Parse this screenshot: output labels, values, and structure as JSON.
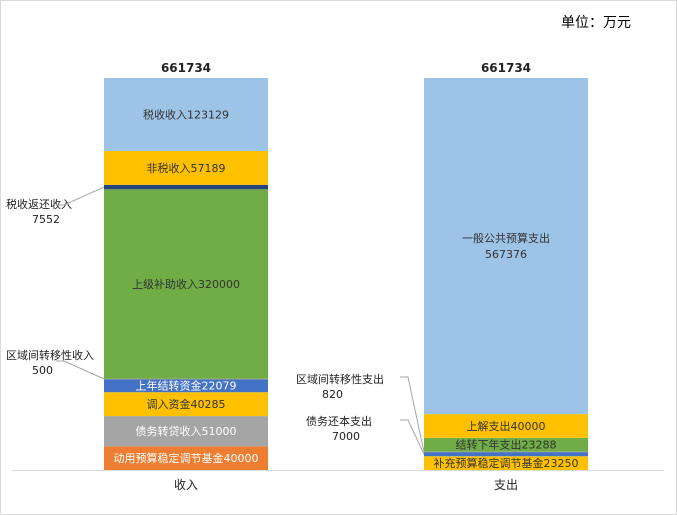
{
  "unit_label": "单位：万元",
  "chart_data": {
    "type": "bar",
    "stacked": true,
    "categories": [
      "收入",
      "支出"
    ],
    "totals": [
      661734,
      661734
    ],
    "bars": [
      {
        "category": "收入",
        "total_label": "661734",
        "segments": [
          {
            "name": "动用预算稳定调节基金",
            "value": 40000,
            "color": "#ED7D31",
            "text_color": "#ffffff"
          },
          {
            "name": "债务转贷收入",
            "value": 51000,
            "color": "#A5A5A5",
            "text_color": "#ffffff"
          },
          {
            "name": "调入资金",
            "value": 40285,
            "color": "#FFC000",
            "text_color": "#333333"
          },
          {
            "name": "上年结转资金",
            "value": 22079,
            "color": "#4472C4",
            "text_color": "#ffffff"
          },
          {
            "name": "区域间转移性收入",
            "value": 500,
            "color": "#A5A5A5",
            "text_color": "#ffffff",
            "callout": true
          },
          {
            "name": "上级补助收入",
            "value": 320000,
            "color": "#70AD47",
            "text_color": "#333333"
          },
          {
            "name": "税收返还收入",
            "value": 7552,
            "color": "#264478",
            "text_color": "#ffffff",
            "callout": true
          },
          {
            "name": "非税收入",
            "value": 57189,
            "color": "#FFC000",
            "text_color": "#333333"
          },
          {
            "name": "税收收入",
            "value": 123129,
            "color": "#9DC3E6",
            "text_color": "#333333"
          }
        ]
      },
      {
        "category": "支出",
        "total_label": "661734",
        "segments": [
          {
            "name": "补充预算稳定调节基金",
            "value": 23250,
            "color": "#FFC000",
            "text_color": "#333333"
          },
          {
            "name": "债务还本支出",
            "value": 7000,
            "color": "#4472C4",
            "text_color": "#ffffff",
            "callout": true
          },
          {
            "name": "区域间转移性支出",
            "value": 820,
            "color": "#A5A5A5",
            "text_color": "#ffffff",
            "callout": true
          },
          {
            "name": "结转下年支出",
            "value": 23288,
            "color": "#70AD47",
            "text_color": "#333333"
          },
          {
            "name": "上解支出",
            "value": 40000,
            "color": "#FFC000",
            "text_color": "#333333"
          },
          {
            "name": "一般公共预算支出",
            "value": 567376,
            "color": "#9DC3E6",
            "text_color": "#333333",
            "two_line": true
          }
        ]
      }
    ],
    "ylim": [
      0,
      661734
    ],
    "grid": false,
    "legend": "none"
  }
}
